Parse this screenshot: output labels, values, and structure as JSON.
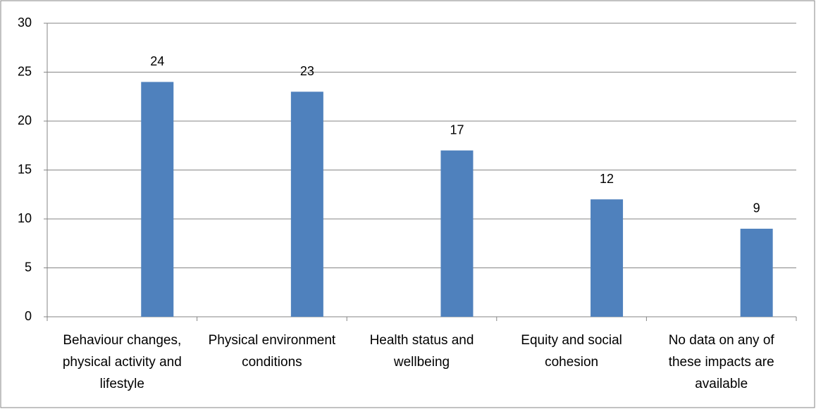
{
  "chart_data": {
    "type": "bar",
    "categories": [
      "Behaviour changes, physical activity and lifestyle",
      "Physical environment conditions",
      "Health status and wellbeing",
      "Equity and social cohesion",
      "No data on any of these impacts are available"
    ],
    "values": [
      24,
      23,
      17,
      12,
      9
    ],
    "color": "#4f81bd",
    "ylim": [
      0,
      30
    ],
    "yticks": [
      0,
      5,
      10,
      15,
      20,
      25,
      30
    ],
    "grid": true
  }
}
